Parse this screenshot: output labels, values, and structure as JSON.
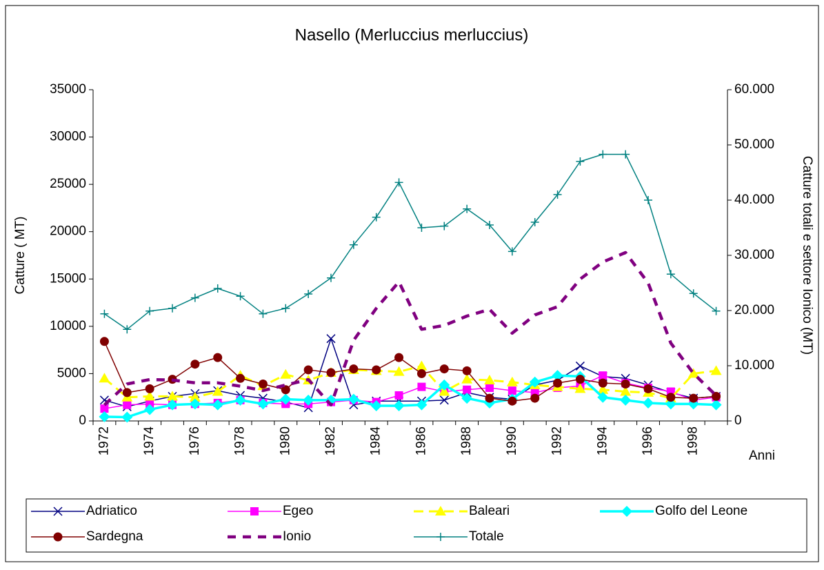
{
  "chart_data": {
    "type": "line",
    "title": "Nasello (Merluccius merluccius)",
    "y_label": "Catture ( MT)",
    "y2_label": "Catture totali e settore Ionico (MT)",
    "x_label": "Anni",
    "categories": [
      "1972",
      null,
      "1974",
      null,
      "1976",
      null,
      "1978",
      null,
      "1980",
      null,
      "1982",
      null,
      "1984",
      null,
      "1986",
      null,
      "1988",
      null,
      "1990",
      null,
      "1992",
      null,
      "1994",
      null,
      "1996",
      null,
      "1998",
      null
    ],
    "ylim": [
      0,
      35000
    ],
    "yticks": [
      0,
      5000,
      10000,
      15000,
      20000,
      25000,
      30000,
      35000
    ],
    "y2lim": [
      0,
      60000
    ],
    "y2ticks": [
      {
        "value": 0,
        "label": "0"
      },
      {
        "value": 10000,
        "label": "10.000"
      },
      {
        "value": 20000,
        "label": "20.000"
      },
      {
        "value": 30000,
        "label": "30.000"
      },
      {
        "value": 40000,
        "label": "40.000"
      },
      {
        "value": 50000,
        "label": "50.000"
      },
      {
        "value": 60000,
        "label": "60.000"
      }
    ],
    "grid": false,
    "legend": "bottom",
    "series": [
      {
        "name": "Adriatico",
        "color": "#000080",
        "marker": "x",
        "dash": "solid",
        "width": 1.5,
        "values": [
          2200,
          1500,
          2100,
          2600,
          2900,
          3200,
          2700,
          2400,
          2000,
          1400,
          8700,
          1700,
          2100,
          2100,
          2100,
          2200,
          3000,
          2500,
          2300,
          3800,
          4300,
          5800,
          4700,
          4500,
          3800,
          3000,
          2400,
          2600
        ]
      },
      {
        "name": "Egeo",
        "color": "#ff00ff",
        "marker": "square",
        "dash": "solid",
        "width": 1.5,
        "values": [
          1300,
          1700,
          1800,
          1700,
          1800,
          1900,
          2200,
          1900,
          1800,
          1800,
          2000,
          2200,
          2000,
          2700,
          3600,
          3100,
          3300,
          3500,
          3200,
          3000,
          3500,
          3700,
          4800,
          4000,
          3500,
          3100,
          2200,
          2500
        ]
      },
      {
        "name": "Baleari",
        "color": "#ffff00",
        "marker": "triangle",
        "dash": "dashed",
        "width": 3,
        "values": [
          4500,
          2500,
          2600,
          2600,
          2500,
          3100,
          4800,
          3700,
          4900,
          4300,
          5100,
          5400,
          5300,
          5200,
          5800,
          3100,
          4400,
          4300,
          4100,
          3800,
          3600,
          3400,
          3300,
          3100,
          3000,
          2400,
          5000,
          5300
        ]
      },
      {
        "name": "Golfo del Leone",
        "color": "#00ffff",
        "marker": "diamond",
        "dash": "solid",
        "width": 3.5,
        "values": [
          450,
          400,
          1200,
          1700,
          1800,
          1700,
          2200,
          1800,
          2300,
          2200,
          2200,
          2300,
          1600,
          1600,
          1700,
          3800,
          2400,
          1900,
          2300,
          4100,
          4800,
          4700,
          2500,
          2200,
          1900,
          1800,
          1800,
          1700
        ]
      },
      {
        "name": "Sardegna",
        "color": "#800000",
        "marker": "circle",
        "dash": "solid",
        "width": 1.5,
        "values": [
          8400,
          3000,
          3400,
          4400,
          6000,
          6700,
          4500,
          3900,
          3300,
          5400,
          5100,
          5500,
          5400,
          6700,
          5000,
          5500,
          5300,
          2400,
          2100,
          2400,
          4000,
          4400,
          4000,
          3900,
          3400,
          2500,
          2400,
          2600
        ]
      },
      {
        "name": "Ionio",
        "color": "#800080",
        "marker": "none",
        "dash": "dashed",
        "width": 4.5,
        "axis": "y2",
        "values": [
          2900,
          6700,
          7500,
          7400,
          6900,
          6900,
          6300,
          5500,
          6500,
          7500,
          2900,
          14600,
          20400,
          25200,
          16600,
          17300,
          19000,
          20200,
          15900,
          19200,
          20700,
          25700,
          28800,
          30500,
          25000,
          14100,
          8600,
          4600
        ]
      },
      {
        "name": "Totale",
        "color": "#008080",
        "marker": "plus",
        "dash": "solid",
        "width": 1.5,
        "axis": "y2",
        "values": [
          19400,
          16600,
          19900,
          20400,
          22300,
          24000,
          22600,
          19400,
          20400,
          23000,
          25900,
          31900,
          36900,
          43200,
          35000,
          35300,
          38400,
          35500,
          30700,
          36000,
          41000,
          47000,
          48300,
          48300,
          40000,
          26600,
          23100,
          19900
        ]
      }
    ]
  }
}
